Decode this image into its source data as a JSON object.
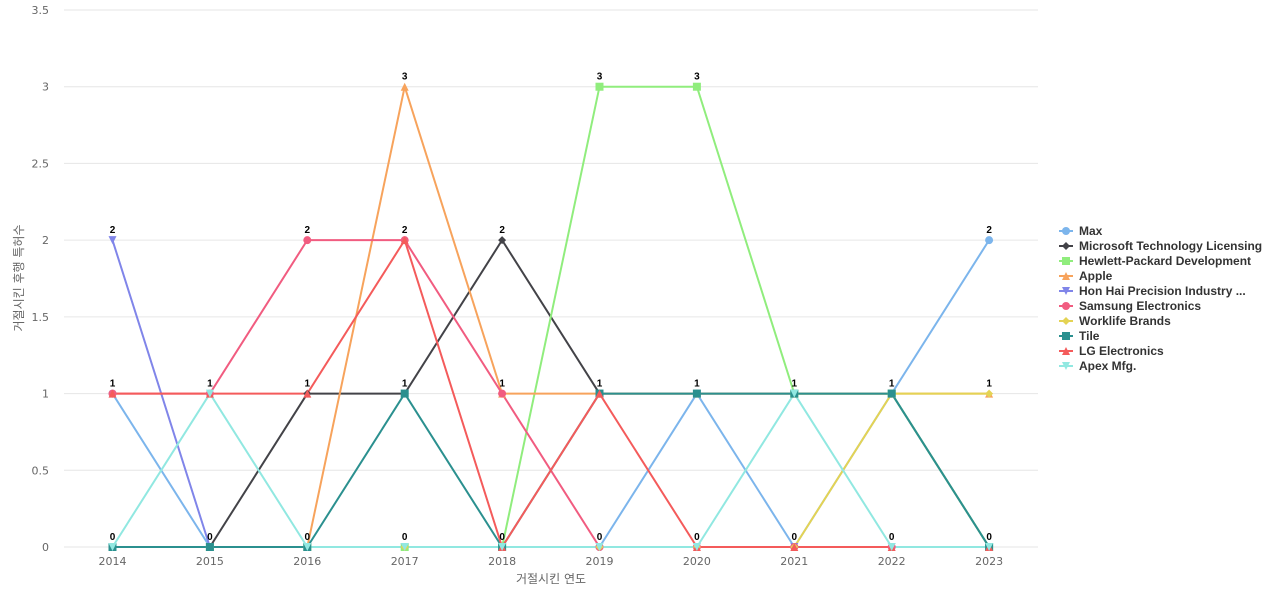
{
  "chart_data": {
    "type": "line",
    "title": "",
    "xlabel": "거절시킨 연도",
    "ylabel": "거절시킨 후행 특허수",
    "categories": [
      "2014",
      "2015",
      "2016",
      "2017",
      "2018",
      "2019",
      "2020",
      "2021",
      "2022",
      "2023"
    ],
    "ylim": [
      0,
      3.5
    ],
    "yticks": [
      "0",
      "0.5",
      "1",
      "1.5",
      "2",
      "2.5",
      "3",
      "3.5"
    ],
    "grid": true,
    "legend_position": "right",
    "series": [
      {
        "name": "Max",
        "color": "#7cb5ec",
        "marker": "circle",
        "values": [
          1,
          0,
          0,
          0,
          0,
          0,
          1,
          0,
          1,
          2
        ]
      },
      {
        "name": "Microsoft Technology Licensing",
        "color": "#434348",
        "marker": "diamond",
        "values": [
          0,
          0,
          1,
          1,
          2,
          1,
          1,
          1,
          1,
          0
        ]
      },
      {
        "name": "Hewlett-Packard Development",
        "color": "#90ed7d",
        "marker": "square",
        "values": [
          0,
          0,
          0,
          0,
          0,
          3,
          3,
          1,
          1,
          0
        ]
      },
      {
        "name": "Apple",
        "color": "#f7a35c",
        "marker": "triangle",
        "values": [
          0,
          0,
          0,
          3,
          1,
          1,
          1,
          1,
          1,
          1
        ]
      },
      {
        "name": "Hon Hai Precision Industry ...",
        "color": "#8085e9",
        "marker": "triangle-down",
        "values": [
          2,
          0,
          0,
          0,
          0,
          0,
          0,
          0,
          0,
          0
        ]
      },
      {
        "name": "Samsung Electronics",
        "color": "#f15c80",
        "marker": "circle",
        "values": [
          1,
          1,
          2,
          2,
          1,
          0,
          0,
          0,
          0,
          0
        ]
      },
      {
        "name": "Worklife Brands",
        "color": "#e4d354",
        "marker": "diamond",
        "values": [
          0,
          0,
          0,
          0,
          0,
          0,
          0,
          0,
          1,
          1
        ]
      },
      {
        "name": "Tile",
        "color": "#2b908f",
        "marker": "square",
        "values": [
          0,
          0,
          0,
          1,
          0,
          1,
          1,
          1,
          1,
          0
        ]
      },
      {
        "name": "LG Electronics",
        "color": "#f45b5b",
        "marker": "triangle",
        "values": [
          1,
          1,
          1,
          2,
          0,
          1,
          0,
          0,
          0,
          0
        ]
      },
      {
        "name": "Apex Mfg.",
        "color": "#91e8e1",
        "marker": "triangle-down",
        "values": [
          0,
          1,
          0,
          0,
          0,
          0,
          0,
          1,
          0,
          0
        ]
      }
    ],
    "data_labels": [
      {
        "x": "2014",
        "values": [
          "2",
          "1",
          "0"
        ]
      },
      {
        "x": "2015",
        "values": [
          "1",
          "0"
        ]
      },
      {
        "x": "2016",
        "values": [
          "2",
          "1",
          "0"
        ]
      },
      {
        "x": "2017",
        "values": [
          "3",
          "2",
          "1",
          "0"
        ]
      },
      {
        "x": "2018",
        "values": [
          "2",
          "1",
          "0"
        ]
      },
      {
        "x": "2019",
        "values": [
          "3",
          "1",
          "0"
        ]
      },
      {
        "x": "2020",
        "values": [
          "3",
          "1",
          "0"
        ]
      },
      {
        "x": "2021",
        "values": [
          "1",
          "0"
        ]
      },
      {
        "x": "2022",
        "values": [
          "1",
          "0"
        ]
      },
      {
        "x": "2023",
        "values": [
          "2",
          "1",
          "0"
        ]
      }
    ]
  }
}
